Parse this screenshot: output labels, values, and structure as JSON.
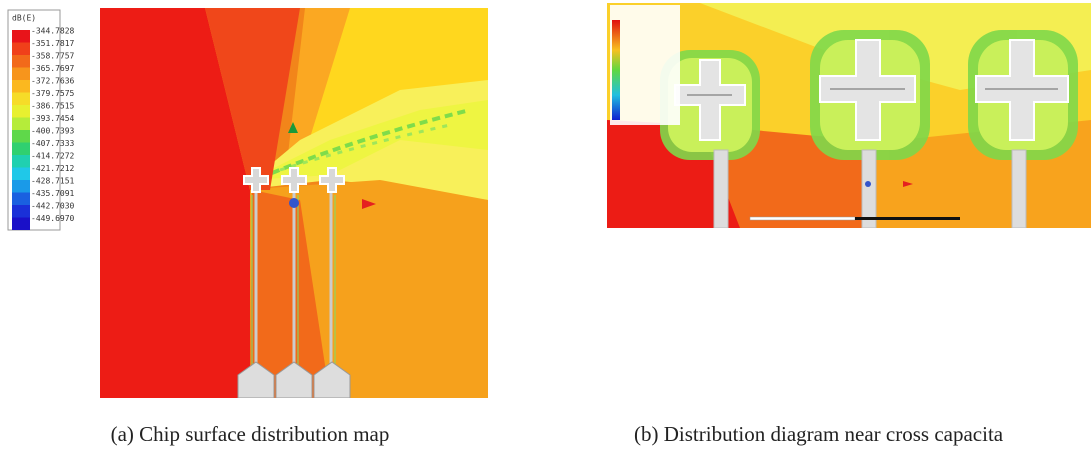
{
  "figure": {
    "panel_a": {
      "legend_title": "dB(E)",
      "legend_labels": [
        "-344.7828",
        "-351.7817",
        "-358.7757",
        "-365.7697",
        "-372.7636",
        "-379.7575",
        "-386.7515",
        "-393.7454",
        "-400.7393",
        "-407.7333",
        "-414.7272",
        "-421.7212",
        "-428.7151",
        "-435.7091",
        "-442.7030",
        "-449.6970"
      ],
      "caption": "(a) Chip surface distribution map"
    },
    "panel_b": {
      "caption": "(b) Distribution diagram near cross capacita"
    }
  }
}
